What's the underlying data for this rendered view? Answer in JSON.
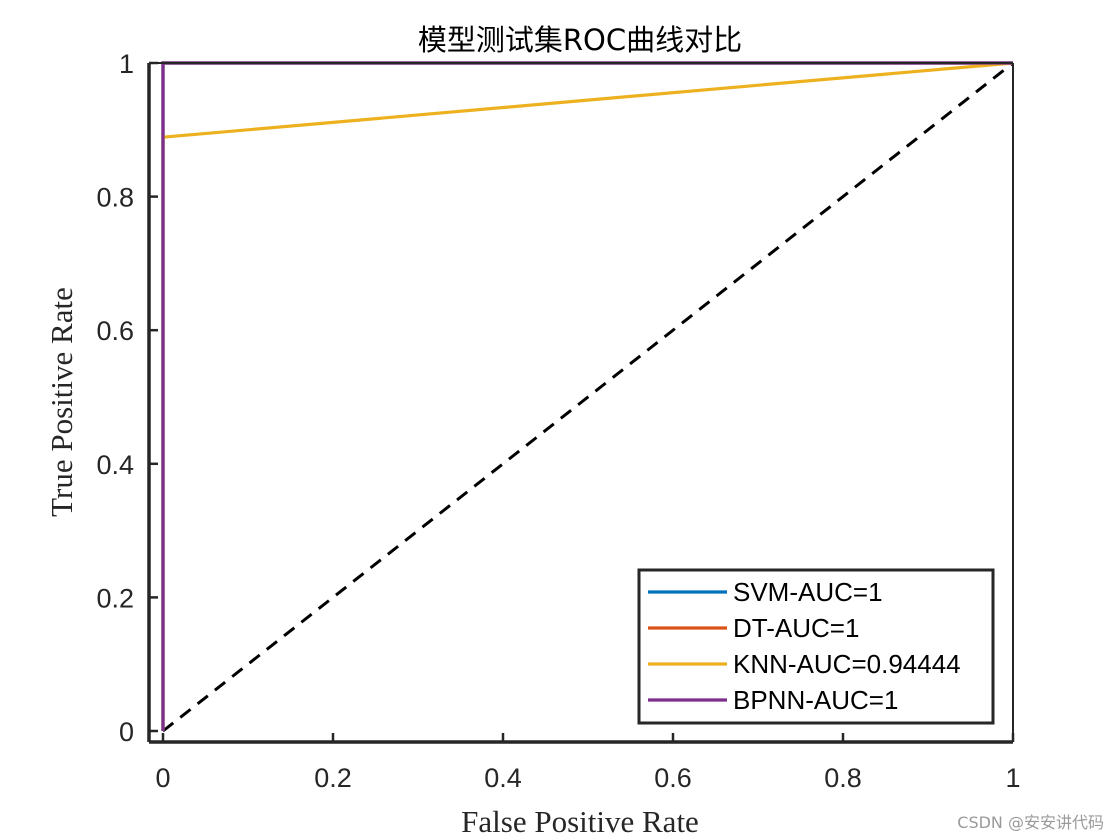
{
  "chart_data": {
    "type": "line",
    "title": "模型测试集ROC曲线对比",
    "xlabel": "False Positive Rate",
    "ylabel": "True Positive Rate",
    "xlim": [
      0,
      1
    ],
    "ylim": [
      0,
      1
    ],
    "xticks": [
      0,
      0.2,
      0.4,
      0.6,
      0.8,
      1
    ],
    "yticks": [
      0,
      0.2,
      0.4,
      0.6,
      0.8,
      1
    ],
    "xtick_labels": [
      "0",
      "0.2",
      "0.4",
      "0.6",
      "0.8",
      "1"
    ],
    "ytick_labels": [
      "0",
      "0.2",
      "0.4",
      "0.6",
      "0.8",
      "1"
    ],
    "grid": false,
    "legend_position": "bottom-right",
    "series": [
      {
        "name": "SVM-AUC=1",
        "color": "#0072BD",
        "x": [
          0,
          0,
          1
        ],
        "y": [
          0,
          1,
          1
        ]
      },
      {
        "name": "DT-AUC=1",
        "color": "#D95319",
        "x": [
          0,
          0,
          1
        ],
        "y": [
          0,
          1,
          1
        ]
      },
      {
        "name": "KNN-AUC=0.94444",
        "color": "#EDB120",
        "x": [
          0,
          0,
          1
        ],
        "y": [
          0,
          0.8889,
          1
        ]
      },
      {
        "name": "BPNN-AUC=1",
        "color": "#7E2F8E",
        "x": [
          0,
          0,
          1
        ],
        "y": [
          0,
          1,
          1
        ]
      }
    ],
    "reference_line": {
      "x": [
        0,
        1
      ],
      "y": [
        0,
        1
      ],
      "style": "dashed",
      "color": "#000000"
    }
  },
  "watermark": "CSDN @安安讲代码"
}
